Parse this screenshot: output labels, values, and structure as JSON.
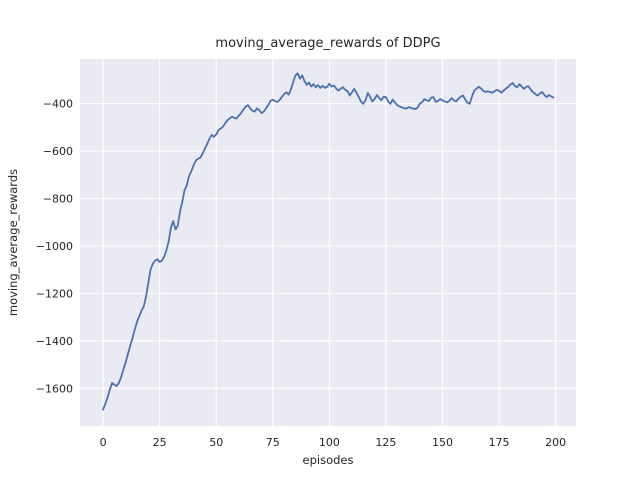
{
  "figure": {
    "background_color": "#ffffff",
    "plot_background_color": "#eaeaf2",
    "grid_color": "#ffffff",
    "text_color": "#262626"
  },
  "chart_data": {
    "type": "line",
    "title": "moving_average_rewards of DDPG",
    "xlabel": "episodes",
    "ylabel": "moving_average_rewards",
    "legend_position": "none",
    "grid": true,
    "line_color": "#4c72b0",
    "x_ticks": [
      0,
      25,
      50,
      75,
      100,
      125,
      150,
      175,
      200
    ],
    "y_ticks": [
      -400,
      -600,
      -800,
      -1000,
      -1200,
      -1400,
      -1600
    ],
    "xlim": [
      -10.2,
      209
    ],
    "ylim": [
      -1759,
      -212
    ],
    "x": {
      "start": 0,
      "step": 1,
      "count": 200
    },
    "y_values": [
      -1690,
      -1665,
      -1638,
      -1605,
      -1578,
      -1585,
      -1590,
      -1577,
      -1552,
      -1520,
      -1490,
      -1455,
      -1420,
      -1388,
      -1352,
      -1320,
      -1296,
      -1272,
      -1255,
      -1212,
      -1155,
      -1098,
      -1075,
      -1062,
      -1056,
      -1068,
      -1062,
      -1045,
      -1018,
      -980,
      -922,
      -895,
      -930,
      -915,
      -855,
      -815,
      -765,
      -745,
      -705,
      -685,
      -660,
      -640,
      -632,
      -628,
      -610,
      -590,
      -570,
      -548,
      -532,
      -540,
      -530,
      -512,
      -505,
      -497,
      -482,
      -470,
      -462,
      -455,
      -460,
      -463,
      -450,
      -440,
      -425,
      -413,
      -406,
      -420,
      -430,
      -434,
      -420,
      -428,
      -440,
      -434,
      -420,
      -406,
      -388,
      -384,
      -390,
      -393,
      -385,
      -372,
      -360,
      -352,
      -362,
      -340,
      -310,
      -282,
      -272,
      -295,
      -281,
      -305,
      -321,
      -311,
      -328,
      -318,
      -331,
      -322,
      -334,
      -325,
      -333,
      -330,
      -316,
      -328,
      -324,
      -336,
      -345,
      -337,
      -331,
      -342,
      -347,
      -366,
      -352,
      -338,
      -355,
      -372,
      -392,
      -401,
      -386,
      -355,
      -371,
      -391,
      -380,
      -364,
      -376,
      -386,
      -371,
      -373,
      -391,
      -401,
      -383,
      -396,
      -406,
      -412,
      -416,
      -419,
      -421,
      -415,
      -418,
      -421,
      -423,
      -417,
      -400,
      -394,
      -381,
      -386,
      -389,
      -375,
      -373,
      -393,
      -389,
      -381,
      -386,
      -391,
      -395,
      -389,
      -377,
      -386,
      -391,
      -380,
      -371,
      -366,
      -381,
      -396,
      -401,
      -371,
      -346,
      -337,
      -329,
      -336,
      -346,
      -351,
      -348,
      -351,
      -354,
      -348,
      -342,
      -346,
      -354,
      -345,
      -337,
      -330,
      -320,
      -313,
      -326,
      -331,
      -318,
      -328,
      -338,
      -329,
      -327,
      -341,
      -352,
      -359,
      -366,
      -358,
      -351,
      -363,
      -373,
      -364,
      -369,
      -375
    ]
  }
}
